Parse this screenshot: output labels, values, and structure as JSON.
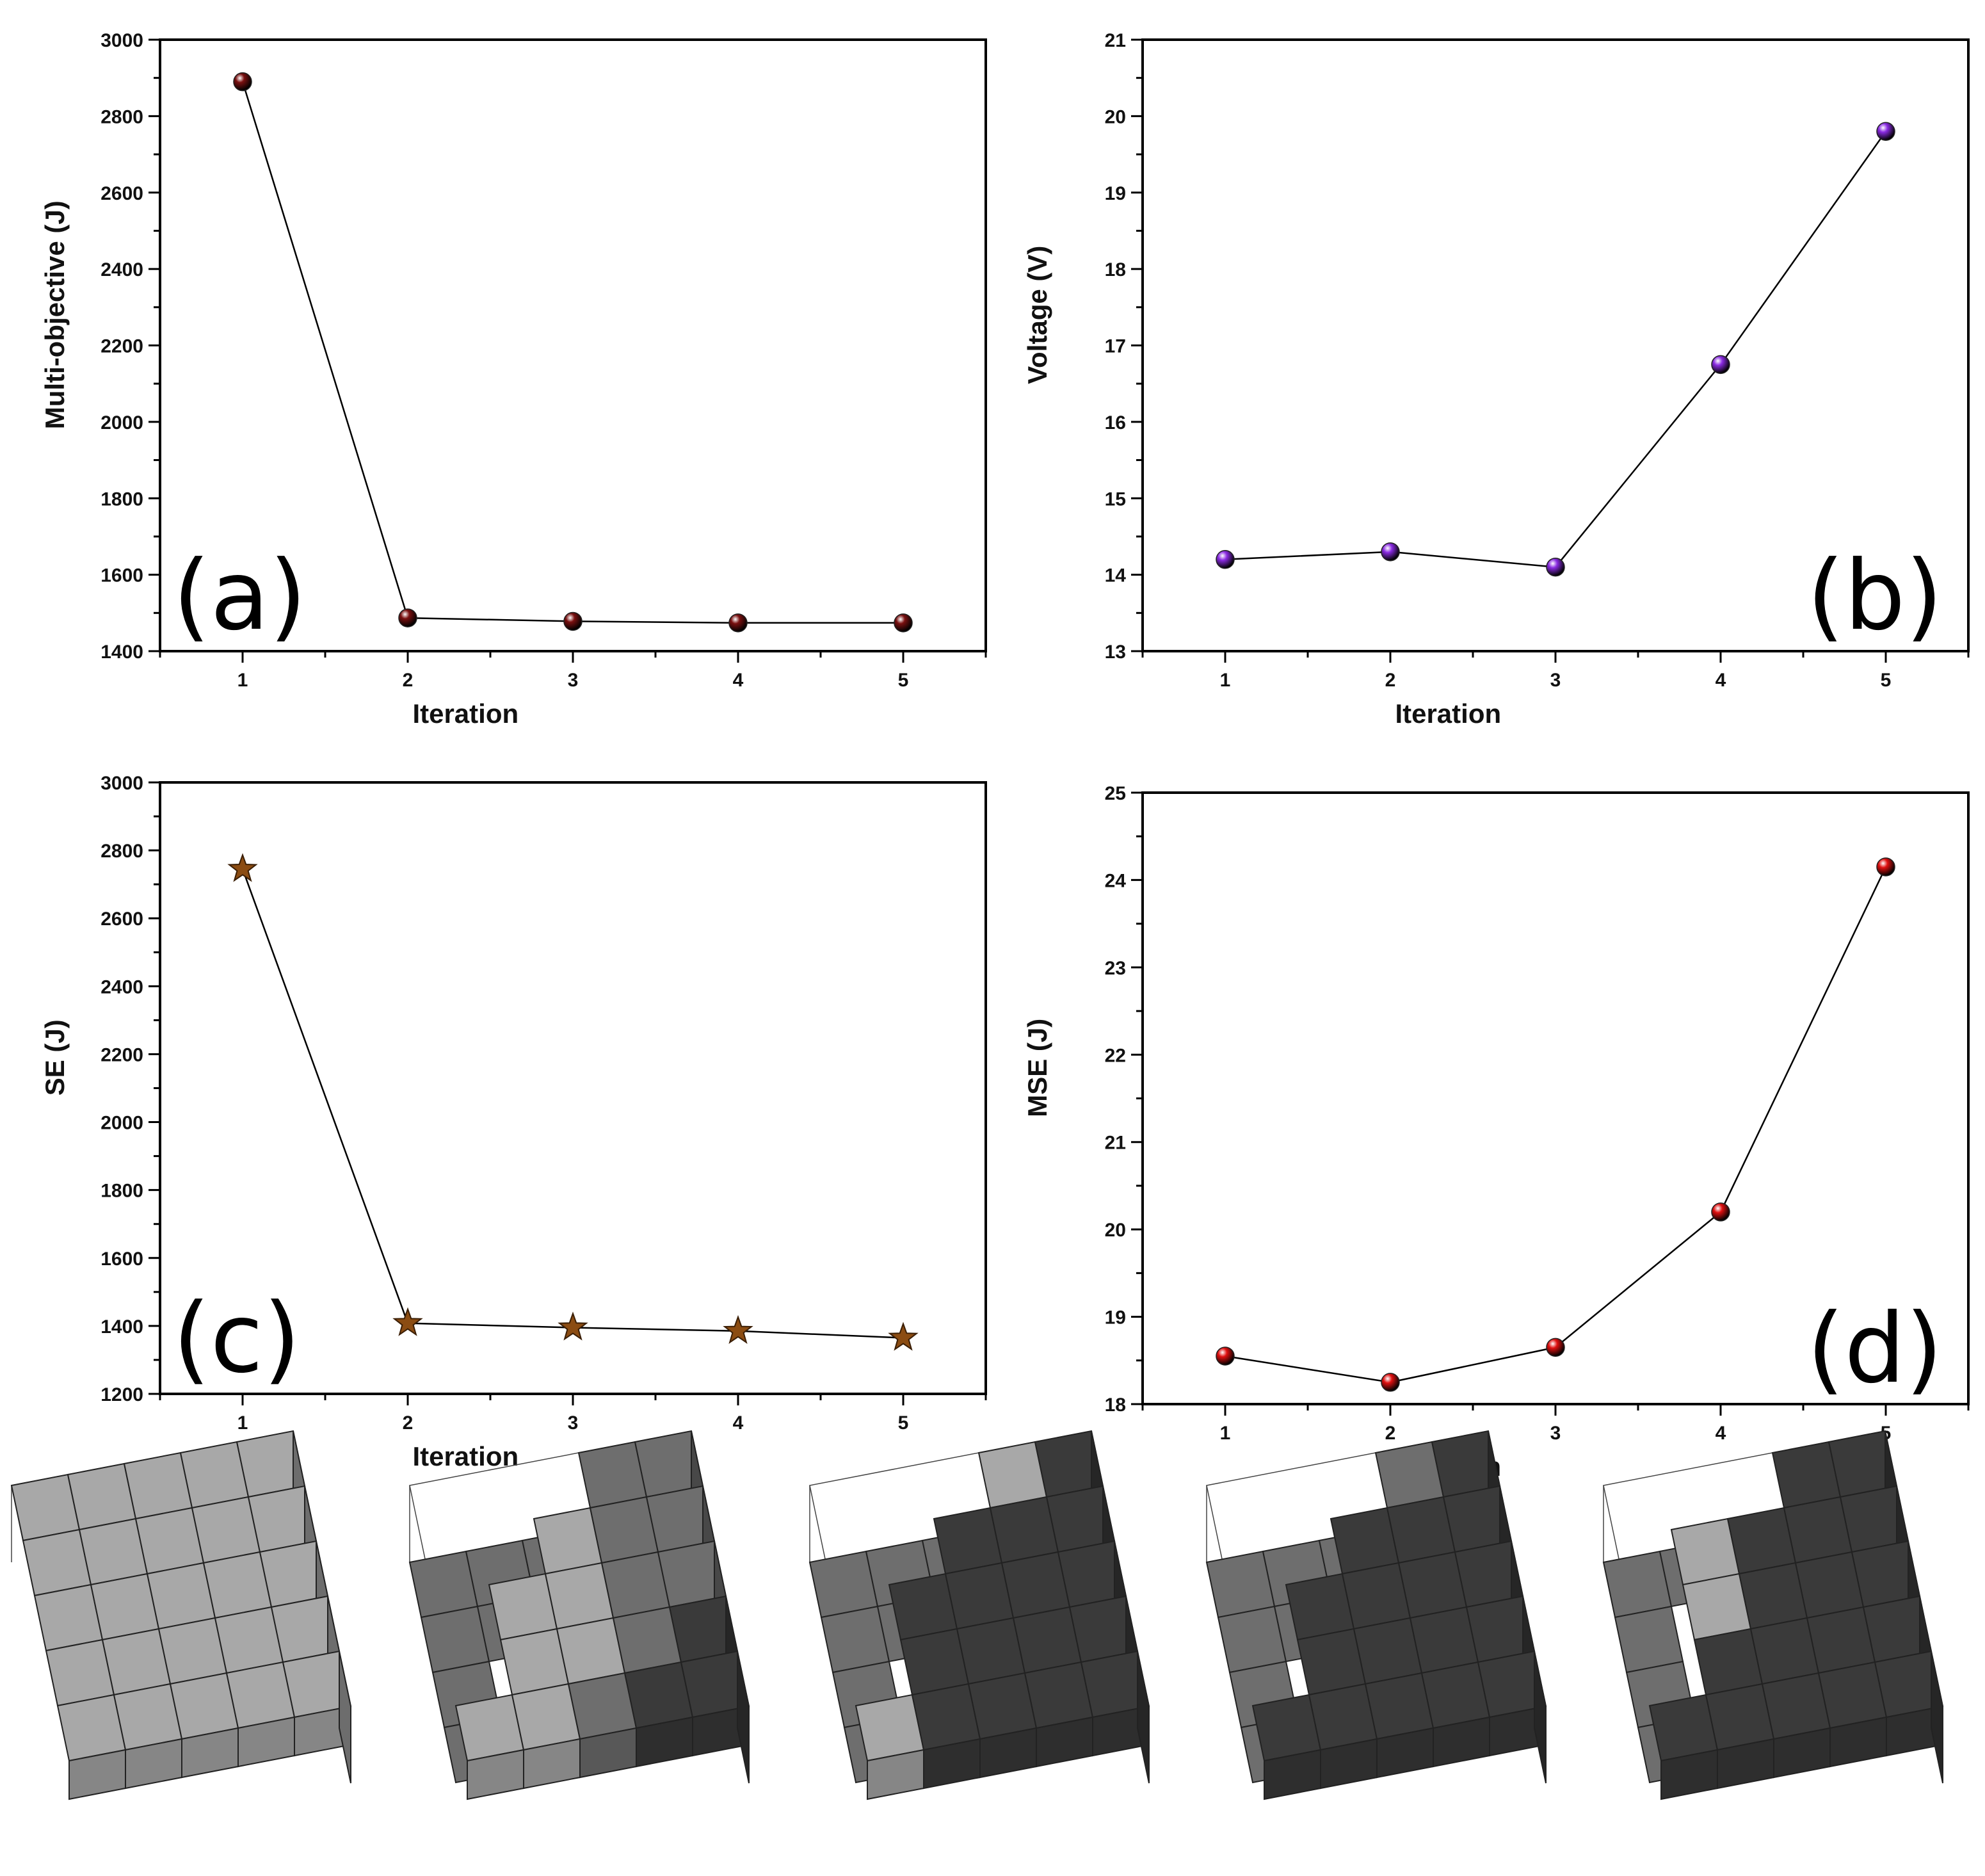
{
  "colors": {
    "a": "#7a1010",
    "b": "#8a2be2",
    "c": "#8b4c12",
    "d": "#e01010",
    "cube_light": "#a8a8a8",
    "cube_mid": "#6e6e6e",
    "cube_dark": "#3a3a3a",
    "line": "#000000"
  },
  "chart_data": [
    {
      "type": "line",
      "panel_label": "(a)",
      "xlabel": "Iteration",
      "ylabel": "Multi-objective (J)",
      "x": [
        1,
        2,
        3,
        4,
        5
      ],
      "values": [
        2890,
        1487,
        1478,
        1474,
        1474
      ],
      "xlim": [
        0.5,
        5.5
      ],
      "ylim": [
        1400,
        3000
      ],
      "xticks": [
        1,
        2,
        3,
        4,
        5
      ],
      "yticks": [
        1400,
        1600,
        1800,
        2000,
        2200,
        2400,
        2600,
        2800,
        3000
      ],
      "marker": "sphere",
      "label_pos": "bottom-left"
    },
    {
      "type": "line",
      "panel_label": "(b)",
      "xlabel": "Iteration",
      "ylabel": "Voltage (V)",
      "x": [
        1,
        2,
        3,
        4,
        5
      ],
      "values": [
        14.2,
        14.3,
        14.1,
        16.75,
        19.8
      ],
      "xlim": [
        0.5,
        5.5
      ],
      "ylim": [
        13,
        21
      ],
      "xticks": [
        1,
        2,
        3,
        4,
        5
      ],
      "yticks": [
        13,
        14,
        15,
        16,
        17,
        18,
        19,
        20,
        21
      ],
      "marker": "sphere",
      "label_pos": "bottom-right"
    },
    {
      "type": "line",
      "panel_label": "(c)",
      "xlabel": "Iteration",
      "ylabel": "SE (J)",
      "x": [
        1,
        2,
        3,
        4,
        5
      ],
      "values": [
        2745,
        1408,
        1395,
        1385,
        1365
      ],
      "xlim": [
        0.5,
        5.5
      ],
      "ylim": [
        1200,
        3000
      ],
      "xticks": [
        1,
        2,
        3,
        4,
        5
      ],
      "yticks": [
        1200,
        1400,
        1600,
        1800,
        2000,
        2200,
        2400,
        2600,
        2800,
        3000
      ],
      "marker": "star",
      "label_pos": "bottom-left"
    },
    {
      "type": "line",
      "panel_label": "(d)",
      "xlabel": "Iteration",
      "ylabel": "MSE (J)",
      "x": [
        1,
        2,
        3,
        4,
        5
      ],
      "values": [
        18.55,
        18.25,
        18.65,
        20.2,
        24.15
      ],
      "xlim": [
        0.5,
        5.5
      ],
      "ylim": [
        18,
        25
      ],
      "xticks": [
        1,
        2,
        3,
        4,
        5
      ],
      "yticks": [
        18,
        19,
        20,
        21,
        22,
        23,
        24,
        25
      ],
      "marker": "sphere",
      "label_pos": "bottom-right"
    }
  ],
  "cube_iterations": [
    {
      "iteration": 1,
      "top": [
        [
          1,
          1,
          1,
          1,
          1
        ],
        [
          1,
          1,
          1,
          1,
          1
        ],
        [
          1,
          1,
          1,
          1,
          1
        ],
        [
          1,
          1,
          1,
          1,
          1
        ],
        [
          1,
          1,
          1,
          1,
          1
        ]
      ]
    },
    {
      "iteration": 2,
      "top": [
        [
          0,
          0,
          0,
          2,
          2
        ],
        [
          0,
          0,
          1,
          2,
          2
        ],
        [
          0,
          1,
          1,
          2,
          2
        ],
        [
          0,
          1,
          1,
          2,
          3
        ],
        [
          1,
          1,
          2,
          3,
          3
        ]
      ]
    },
    {
      "iteration": 3,
      "top": [
        [
          0,
          0,
          0,
          1,
          3
        ],
        [
          0,
          0,
          3,
          3,
          3
        ],
        [
          0,
          3,
          3,
          3,
          3
        ],
        [
          0,
          3,
          3,
          3,
          3
        ],
        [
          1,
          3,
          3,
          3,
          3
        ]
      ]
    },
    {
      "iteration": 4,
      "top": [
        [
          0,
          0,
          0,
          2,
          3
        ],
        [
          0,
          0,
          3,
          3,
          3
        ],
        [
          0,
          3,
          3,
          3,
          3
        ],
        [
          0,
          3,
          3,
          3,
          3
        ],
        [
          3,
          3,
          3,
          3,
          3
        ]
      ]
    },
    {
      "iteration": 5,
      "top": [
        [
          0,
          0,
          0,
          3,
          3
        ],
        [
          0,
          1,
          3,
          3,
          3
        ],
        [
          0,
          1,
          3,
          3,
          3
        ],
        [
          0,
          3,
          3,
          3,
          3
        ],
        [
          3,
          3,
          3,
          3,
          3
        ]
      ]
    }
  ]
}
